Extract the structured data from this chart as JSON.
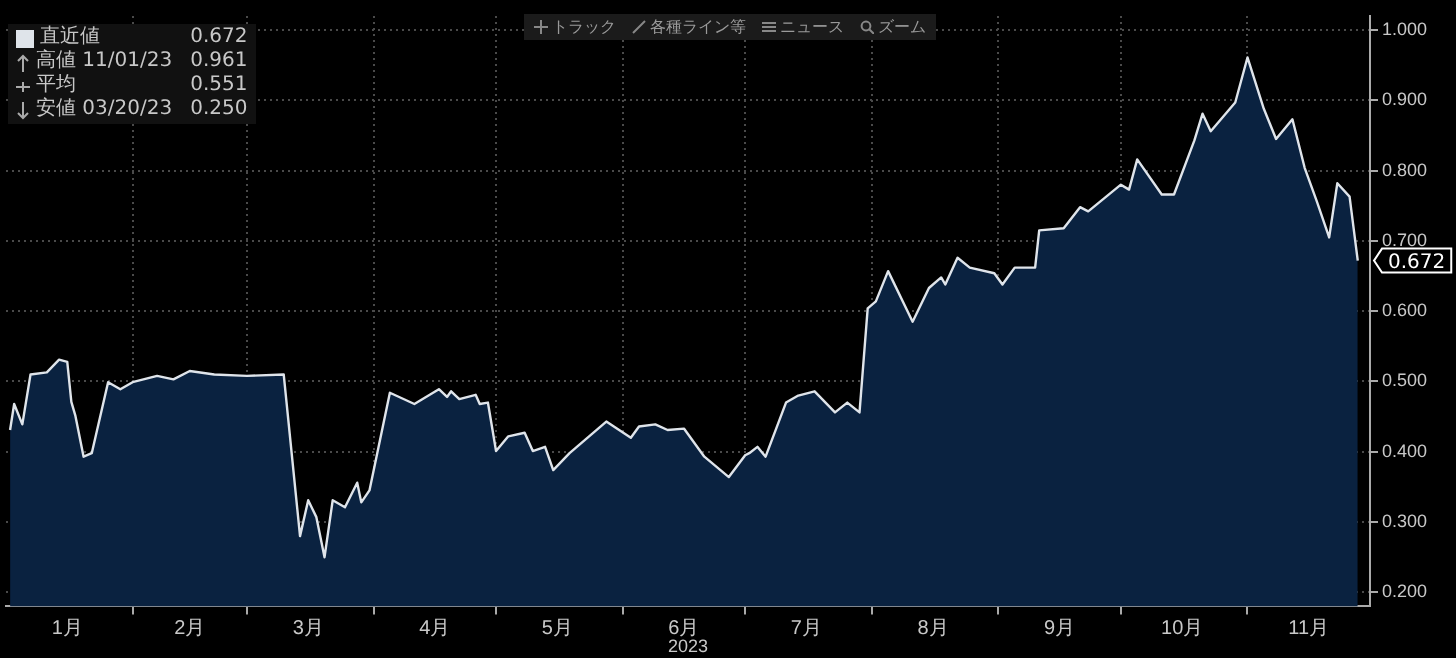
{
  "chart_data": {
    "type": "area",
    "xlabel": "2023",
    "legend": "top left",
    "grid": true,
    "xlim": [
      "2023-01-01",
      "2023-12-01"
    ],
    "xticks": [
      {
        "value": "2023-01-16",
        "label": "1月"
      },
      {
        "value": "2023-02-01",
        "label": null
      },
      {
        "value": "2023-02-15",
        "label": "2月"
      },
      {
        "value": "2023-03-01",
        "label": null
      },
      {
        "value": "2023-03-16",
        "label": "3月"
      },
      {
        "value": "2023-04-01",
        "label": null
      },
      {
        "value": "2023-04-16",
        "label": "4月"
      },
      {
        "value": "2023-05-01",
        "label": null
      },
      {
        "value": "2023-05-16",
        "label": "5月"
      },
      {
        "value": "2023-06-01",
        "label": null
      },
      {
        "value": "2023-06-16",
        "label": "6月"
      },
      {
        "value": "2023-07-01",
        "label": null
      },
      {
        "value": "2023-07-16",
        "label": "7月"
      },
      {
        "value": "2023-08-01",
        "label": null
      },
      {
        "value": "2023-08-16",
        "label": "8月"
      },
      {
        "value": "2023-09-01",
        "label": null
      },
      {
        "value": "2023-09-16",
        "label": "9月"
      },
      {
        "value": "2023-10-01",
        "label": null
      },
      {
        "value": "2023-10-16",
        "label": "10月"
      },
      {
        "value": "2023-11-01",
        "label": null
      },
      {
        "value": "2023-11-16",
        "label": "11月"
      }
    ],
    "ylim": [
      0.18,
      1.02
    ],
    "yticks": [
      {
        "value": 0.2,
        "label": "0.200"
      },
      {
        "value": 0.3,
        "label": "0.300"
      },
      {
        "value": 0.4,
        "label": "0.400"
      },
      {
        "value": 0.5,
        "label": "0.500"
      },
      {
        "value": 0.6,
        "label": "0.600"
      },
      {
        "value": 0.7,
        "label": "0.700"
      },
      {
        "value": 0.8,
        "label": "0.800"
      },
      {
        "value": 0.9,
        "label": "0.900"
      },
      {
        "value": 1.0,
        "label": "1.000"
      }
    ],
    "x": [
      "2023-01-02",
      "2023-01-03",
      "2023-01-05",
      "2023-01-07",
      "2023-01-11",
      "2023-01-14",
      "2023-01-16",
      "2023-01-17",
      "2023-01-18",
      "2023-01-20",
      "2023-01-22",
      "2023-01-26",
      "2023-01-29",
      "2023-02-01",
      "2023-02-07",
      "2023-02-11",
      "2023-02-15",
      "2023-02-21",
      "2023-03-01",
      "2023-03-10",
      "2023-03-14",
      "2023-03-16",
      "2023-03-18",
      "2023-03-20",
      "2023-03-22",
      "2023-03-25",
      "2023-03-28",
      "2023-03-29",
      "2023-03-31",
      "2023-04-05",
      "2023-04-11",
      "2023-04-17",
      "2023-04-19",
      "2023-04-20",
      "2023-04-22",
      "2023-04-26",
      "2023-04-27",
      "2023-04-29",
      "2023-05-01",
      "2023-05-04",
      "2023-05-08",
      "2023-05-10",
      "2023-05-13",
      "2023-05-15",
      "2023-05-19",
      "2023-05-28",
      "2023-06-03",
      "2023-06-05",
      "2023-06-09",
      "2023-06-12",
      "2023-06-16",
      "2023-06-21",
      "2023-06-27",
      "2023-07-01",
      "2023-07-02",
      "2023-07-04",
      "2023-07-06",
      "2023-07-11",
      "2023-07-14",
      "2023-07-18",
      "2023-07-23",
      "2023-07-26",
      "2023-07-29",
      "2023-07-31",
      "2023-08-02",
      "2023-08-05",
      "2023-08-11",
      "2023-08-15",
      "2023-08-18",
      "2023-08-19",
      "2023-08-22",
      "2023-08-25",
      "2023-08-31",
      "2023-09-02",
      "2023-09-05",
      "2023-09-10",
      "2023-09-11",
      "2023-09-17",
      "2023-09-21",
      "2023-09-23",
      "2023-10-01",
      "2023-10-03",
      "2023-10-05",
      "2023-10-11",
      "2023-10-14",
      "2023-10-19",
      "2023-10-21",
      "2023-10-23",
      "2023-10-29",
      "2023-11-01",
      "2023-11-05",
      "2023-11-08",
      "2023-11-12",
      "2023-11-15",
      "2023-11-18",
      "2023-11-21",
      "2023-11-23",
      "2023-11-26",
      "2023-11-28"
    ],
    "series": [
      {
        "name": "直近値",
        "color": "#dfe4ea",
        "values": [
          0.431,
          0.468,
          0.439,
          0.51,
          0.513,
          0.531,
          0.528,
          0.471,
          0.451,
          0.393,
          0.398,
          0.499,
          0.489,
          0.499,
          0.508,
          0.503,
          0.515,
          0.51,
          0.508,
          0.51,
          0.28,
          0.331,
          0.307,
          0.25,
          0.331,
          0.321,
          0.356,
          0.328,
          0.345,
          0.484,
          0.468,
          0.489,
          0.478,
          0.486,
          0.475,
          0.481,
          0.468,
          0.47,
          0.401,
          0.422,
          0.427,
          0.401,
          0.407,
          0.374,
          0.398,
          0.443,
          0.42,
          0.436,
          0.439,
          0.431,
          0.433,
          0.393,
          0.364,
          0.395,
          0.398,
          0.407,
          0.393,
          0.47,
          0.48,
          0.486,
          0.456,
          0.47,
          0.456,
          0.604,
          0.614,
          0.657,
          0.585,
          0.633,
          0.648,
          0.638,
          0.676,
          0.662,
          0.654,
          0.638,
          0.662,
          0.662,
          0.715,
          0.718,
          0.748,
          0.742,
          0.78,
          0.773,
          0.816,
          0.766,
          0.766,
          0.843,
          0.881,
          0.856,
          0.897,
          0.961,
          0.888,
          0.845,
          0.873,
          0.804,
          0.756,
          0.705,
          0.782,
          0.763,
          0.672
        ]
      }
    ],
    "annotations": [
      "0.672",
      "0.672",
      "高値 11/01/23 0.961",
      "平均 0.551",
      "安値 03/20/23 0.250",
      "トラック",
      "各種ライン等",
      "ニュース",
      "ズーム"
    ]
  }
}
